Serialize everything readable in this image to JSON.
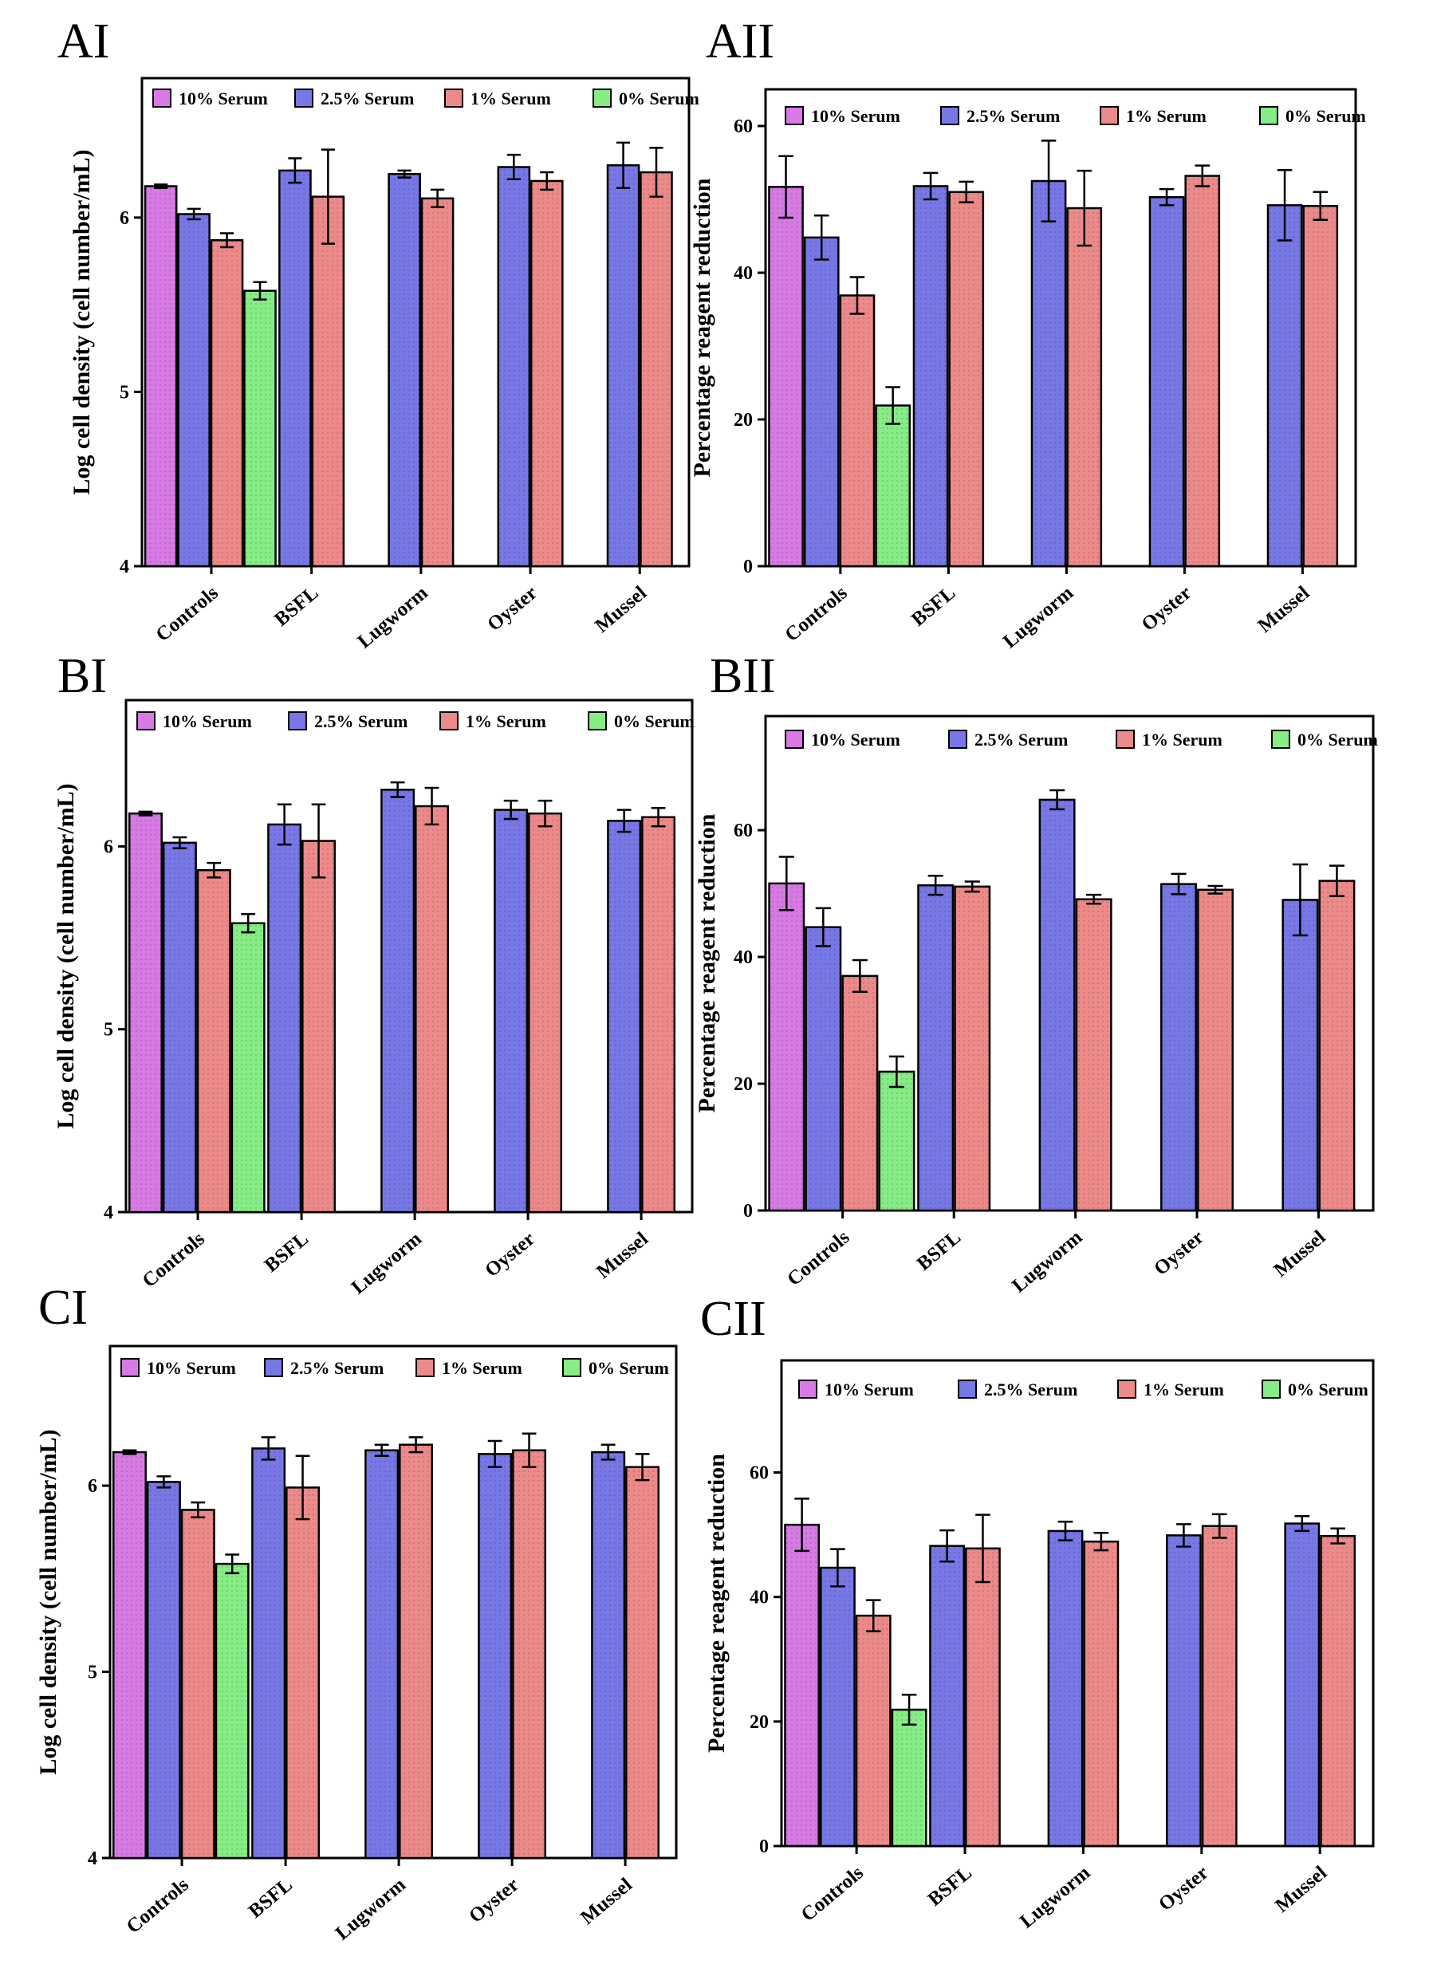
{
  "figure": {
    "categories": [
      "Controls",
      "BSFL",
      "Lugworm",
      "Oyster",
      "Mussel"
    ],
    "legend": [
      "10% Serum",
      "2.5% Serum",
      "1% Serum",
      "0% Serum"
    ]
  },
  "colors": {
    "serum_10": "#d77ae4",
    "serum_2_5": "#7777e6",
    "serum_1": "#ec8a8a",
    "serum_0": "#86ec86"
  },
  "chart_data": [
    {
      "id": "AI",
      "panel_label": "AI",
      "type": "bar",
      "ylabel": "Log cell density (cell number/mL)",
      "ylim": [
        4,
        6.8
      ],
      "yticks": [
        4,
        5,
        6
      ],
      "categories": [
        "Controls",
        "BSFL",
        "Lugworm",
        "Oyster",
        "Mussel"
      ],
      "series": [
        {
          "name": "10% Serum",
          "values": [
            6.18,
            null,
            null,
            null,
            null
          ],
          "errors": [
            0.01,
            null,
            null,
            null,
            null
          ]
        },
        {
          "name": "2.5% Serum",
          "values": [
            6.02,
            6.27,
            6.25,
            6.29,
            6.3
          ],
          "errors": [
            0.03,
            0.07,
            0.02,
            0.07,
            0.13
          ]
        },
        {
          "name": "1% Serum",
          "values": [
            5.87,
            6.12,
            6.11,
            6.21,
            6.26
          ],
          "errors": [
            0.04,
            0.27,
            0.05,
            0.05,
            0.14
          ]
        },
        {
          "name": "0% Serum",
          "values": [
            5.58,
            null,
            null,
            null,
            null
          ],
          "errors": [
            0.05,
            null,
            null,
            null,
            null
          ]
        }
      ]
    },
    {
      "id": "AII",
      "panel_label": "AII",
      "type": "bar",
      "ylabel": "Percentage reagent reduction",
      "ylim": [
        0,
        65
      ],
      "yticks": [
        0,
        20,
        40,
        60
      ],
      "categories": [
        "Controls",
        "BSFL",
        "Lugworm",
        "Oyster",
        "Mussel"
      ],
      "series": [
        {
          "name": "10% Serum",
          "values": [
            51.7,
            null,
            null,
            null,
            null
          ],
          "errors": [
            4.2,
            null,
            null,
            null,
            null
          ]
        },
        {
          "name": "2.5% Serum",
          "values": [
            44.8,
            51.8,
            52.5,
            50.3,
            49.2
          ],
          "errors": [
            3,
            1.8,
            5.5,
            1.1,
            4.8
          ]
        },
        {
          "name": "1% Serum",
          "values": [
            36.9,
            51,
            48.8,
            53.2,
            49.1
          ],
          "errors": [
            2.5,
            1.4,
            5.1,
            1.4,
            1.9
          ]
        },
        {
          "name": "0% Serum",
          "values": [
            21.9,
            null,
            null,
            null,
            null
          ],
          "errors": [
            2.5,
            null,
            null,
            null,
            null
          ]
        }
      ]
    },
    {
      "id": "BI",
      "panel_label": "BI",
      "type": "bar",
      "ylabel": "Log cell density (cell number/mL)",
      "ylim": [
        4,
        6.8
      ],
      "yticks": [
        4,
        5,
        6
      ],
      "categories": [
        "Controls",
        "BSFL",
        "Lugworm",
        "Oyster",
        "Mussel"
      ],
      "series": [
        {
          "name": "10% Serum",
          "values": [
            6.18,
            null,
            null,
            null,
            null
          ],
          "errors": [
            0.01,
            null,
            null,
            null,
            null
          ]
        },
        {
          "name": "2.5% Serum",
          "values": [
            6.02,
            6.12,
            6.31,
            6.2,
            6.14
          ],
          "errors": [
            0.03,
            0.11,
            0.04,
            0.05,
            0.06
          ]
        },
        {
          "name": "1% Serum",
          "values": [
            5.87,
            6.03,
            6.22,
            6.18,
            6.16
          ],
          "errors": [
            0.04,
            0.2,
            0.1,
            0.07,
            0.05
          ]
        },
        {
          "name": "0% Serum",
          "values": [
            5.58,
            null,
            null,
            null,
            null
          ],
          "errors": [
            0.05,
            null,
            null,
            null,
            null
          ]
        }
      ]
    },
    {
      "id": "BII",
      "panel_label": "BII",
      "type": "bar",
      "ylabel": "Percentage reagent reduction",
      "ylim": [
        0,
        78
      ],
      "yticks": [
        0,
        20,
        40,
        60
      ],
      "categories": [
        "Controls",
        "BSFL",
        "Lugworm",
        "Oyster",
        "Mussel"
      ],
      "series": [
        {
          "name": "10% Serum",
          "values": [
            51.6,
            null,
            null,
            null,
            null
          ],
          "errors": [
            4.2,
            null,
            null,
            null,
            null
          ]
        },
        {
          "name": "2.5% Serum",
          "values": [
            44.7,
            51.3,
            64.8,
            51.5,
            49
          ],
          "errors": [
            3,
            1.5,
            1.5,
            1.6,
            5.6
          ]
        },
        {
          "name": "1% Serum",
          "values": [
            37,
            51.1,
            49.1,
            50.6,
            52
          ],
          "errors": [
            2.5,
            0.8,
            0.7,
            0.6,
            2.4
          ]
        },
        {
          "name": "0% Serum",
          "values": [
            21.9,
            null,
            null,
            null,
            null
          ],
          "errors": [
            2.4,
            null,
            null,
            null,
            null
          ]
        }
      ]
    },
    {
      "id": "CI",
      "panel_label": "CI",
      "type": "bar",
      "ylabel": "Log cell density (cell number/mL)",
      "ylim": [
        4,
        6.75
      ],
      "yticks": [
        4,
        5,
        6
      ],
      "categories": [
        "Controls",
        "BSFL",
        "Lugworm",
        "Oyster",
        "Mussel"
      ],
      "series": [
        {
          "name": "10% Serum",
          "values": [
            6.18,
            null,
            null,
            null,
            null
          ],
          "errors": [
            0.01,
            null,
            null,
            null,
            null
          ]
        },
        {
          "name": "2.5% Serum",
          "values": [
            6.02,
            6.2,
            6.19,
            6.17,
            6.18
          ],
          "errors": [
            0.03,
            0.06,
            0.03,
            0.07,
            0.04
          ]
        },
        {
          "name": "1% Serum",
          "values": [
            5.87,
            5.99,
            6.22,
            6.19,
            6.1
          ],
          "errors": [
            0.04,
            0.17,
            0.04,
            0.09,
            0.07
          ]
        },
        {
          "name": "0% Serum",
          "values": [
            5.58,
            null,
            null,
            null,
            null
          ],
          "errors": [
            0.05,
            null,
            null,
            null,
            null
          ]
        }
      ]
    },
    {
      "id": "CII",
      "panel_label": "CII",
      "type": "bar",
      "ylabel": "Percentage reagent reduction",
      "ylim": [
        0,
        78
      ],
      "yticks": [
        0,
        20,
        40,
        60
      ],
      "categories": [
        "Controls",
        "BSFL",
        "Lugworm",
        "Oyster",
        "Mussel"
      ],
      "series": [
        {
          "name": "10% Serum",
          "values": [
            51.6,
            null,
            null,
            null,
            null
          ],
          "errors": [
            4.2,
            null,
            null,
            null,
            null
          ]
        },
        {
          "name": "2.5% Serum",
          "values": [
            44.7,
            48.2,
            50.6,
            49.9,
            51.8
          ],
          "errors": [
            3,
            2.5,
            1.5,
            1.8,
            1.2
          ]
        },
        {
          "name": "1% Serum",
          "values": [
            37,
            47.8,
            48.9,
            51.4,
            49.8
          ],
          "errors": [
            2.5,
            5.4,
            1.4,
            1.9,
            1.2
          ]
        },
        {
          "name": "0% Serum",
          "values": [
            21.9,
            null,
            null,
            null,
            null
          ],
          "errors": [
            2.4,
            null,
            null,
            null,
            null
          ]
        }
      ]
    }
  ]
}
